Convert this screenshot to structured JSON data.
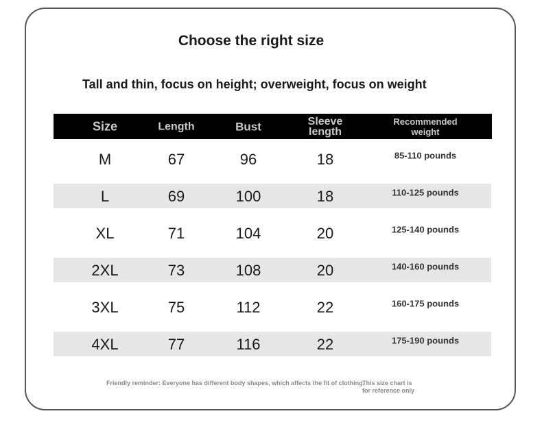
{
  "header": {
    "title": "Choose the right size",
    "subtitle": "Tall and thin, focus on height; overweight, focus on weight"
  },
  "table": {
    "headers": [
      "Size",
      "Length",
      "Bust",
      "Sleeve length",
      "Recommended weight"
    ],
    "rows": [
      [
        "M",
        67,
        96,
        18,
        "85-110 pounds"
      ],
      [
        "L",
        69,
        100,
        18,
        "110-125 pounds"
      ],
      [
        "XL",
        71,
        104,
        20,
        "125-140 pounds"
      ],
      [
        "2XL",
        73,
        108,
        20,
        "140-160 pounds"
      ],
      [
        "3XL",
        75,
        112,
        22,
        "160-175 pounds"
      ],
      [
        "4XL",
        77,
        116,
        22,
        "175-190 pounds"
      ]
    ]
  },
  "footer": {
    "reminder": "Friendly reminder: Everyone has different body shapes, which affects the fit of clothing.",
    "note": [
      "This size chart is",
      "for reference only"
    ]
  }
}
